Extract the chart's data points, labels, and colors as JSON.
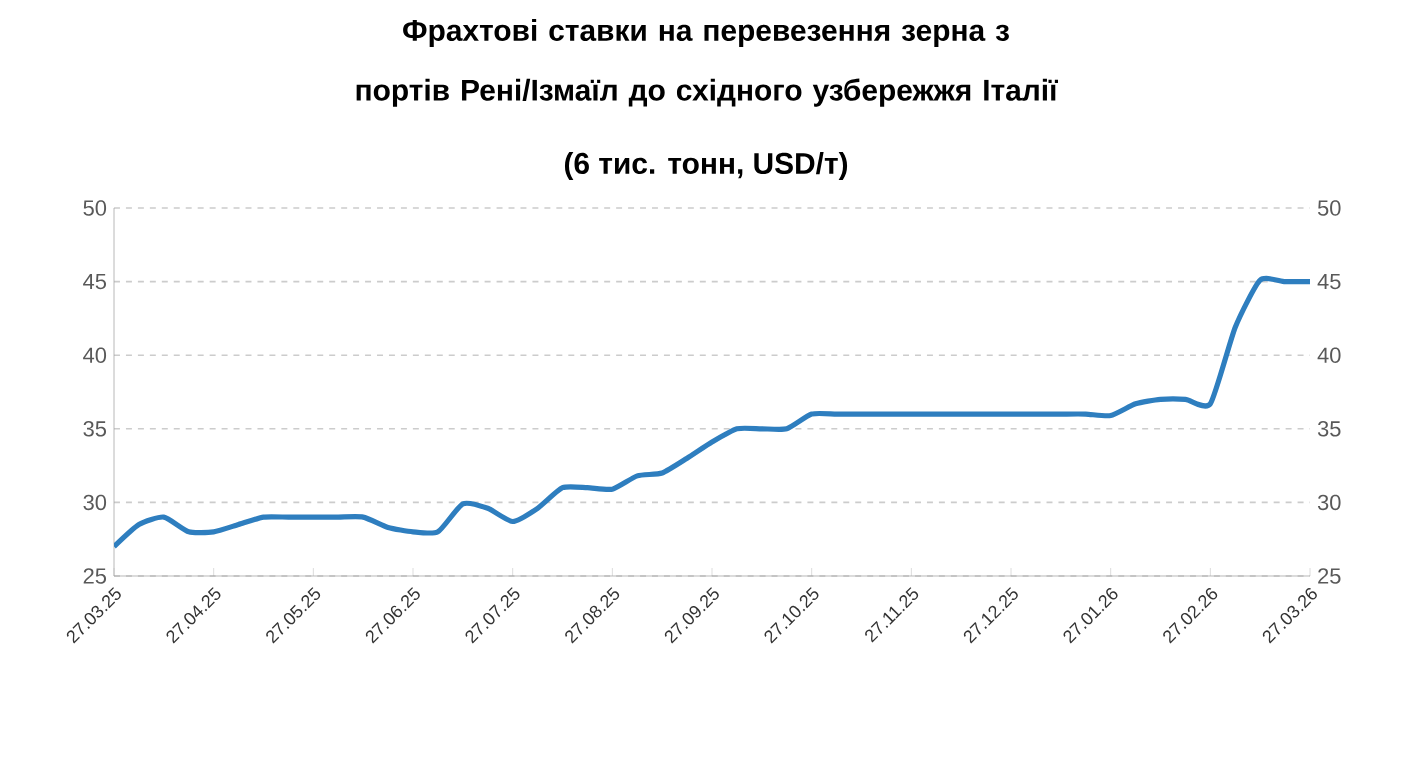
{
  "chart_data": {
    "type": "line",
    "title": "Фрахтові ставки на перевезення зерна з портів Рені/Ізмаїл до східного узбережжя Італії",
    "subtitle": "(6 тис. тонн, USD/т)",
    "categories": [
      "27.03.25",
      null,
      null,
      null,
      "27.04.25",
      null,
      null,
      null,
      "27.05.25",
      null,
      null,
      null,
      "27.06.25",
      null,
      null,
      null,
      "27.07.25",
      null,
      null,
      null,
      "27.08.25",
      null,
      null,
      null,
      "27.09.25",
      null,
      null,
      null,
      "27.10.25",
      null,
      null,
      null,
      "27.11.25",
      null,
      null,
      null,
      "27.12.25",
      null,
      null,
      null,
      "27.01.26",
      null,
      null,
      null,
      "27.02.26",
      null,
      null,
      null,
      "27.03.26"
    ],
    "series": [
      {
        "color": "#2e7ebf",
        "values": [
          27,
          28.5,
          29,
          28,
          28,
          28.5,
          29,
          29,
          29,
          29,
          29,
          28.3,
          28,
          28,
          29.9,
          29.6,
          28.7,
          29.6,
          31,
          31,
          30.9,
          31.8,
          32,
          33,
          34.1,
          35,
          35,
          35,
          36,
          36,
          36,
          36,
          36,
          36,
          36,
          36,
          36,
          36,
          36,
          36,
          35.9,
          36.7,
          37,
          37,
          36.7,
          41.9,
          45.1,
          45,
          45
        ]
      }
    ],
    "ylim": [
      25,
      50
    ],
    "yticks": [
      25,
      30,
      35,
      40,
      45,
      50
    ],
    "y2lim": [
      25,
      50
    ],
    "y2ticks": [
      25,
      30,
      35,
      40,
      45,
      50
    ],
    "grid": "y",
    "marker": "none",
    "line_style": "solid"
  }
}
